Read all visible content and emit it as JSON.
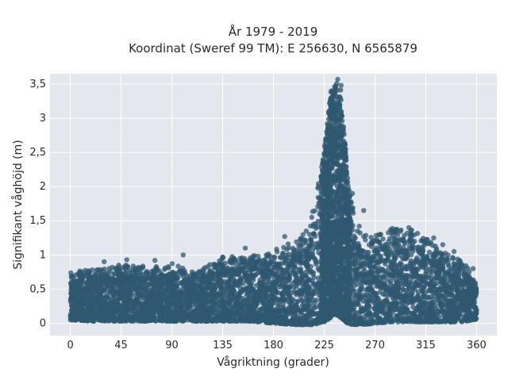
{
  "chart_data": {
    "type": "scatter",
    "title": [
      "År 1979 - 2019",
      "Koordinat (Sweref 99 TM): E 256630, N 6565879"
    ],
    "xlabel": "Vågriktning (grader)",
    "ylabel": "Signifikant våghöjd (m)",
    "xlim": [
      -18,
      378
    ],
    "ylim": [
      -0.18,
      3.65
    ],
    "x_ticks": [
      0,
      45,
      90,
      135,
      180,
      225,
      270,
      315,
      360
    ],
    "x_tick_labels": [
      "0",
      "45",
      "90",
      "135",
      "180",
      "225",
      "270",
      "315",
      "360"
    ],
    "y_ticks": [
      0,
      0.5,
      1,
      1.5,
      2,
      2.5,
      3,
      3.5
    ],
    "y_tick_labels": [
      "0",
      "0,5",
      "1",
      "1,5",
      "2",
      "2,5",
      "3",
      "3,5"
    ],
    "grid": true,
    "legend": "none",
    "marker_color": "#2f5870",
    "plot_background": "#e5e7ef",
    "envelope": {
      "description_x": "wave direction (degrees)",
      "x": [
        0,
        20,
        45,
        70,
        90,
        110,
        135,
        160,
        180,
        200,
        210,
        215,
        220,
        225,
        228,
        230,
        232,
        234,
        236,
        238,
        240,
        242,
        244,
        246,
        250,
        255,
        260,
        270,
        285,
        300,
        315,
        330,
        345,
        360
      ],
      "y_max": [
        0.72,
        0.78,
        0.85,
        0.8,
        0.85,
        0.72,
        0.95,
        0.95,
        1.05,
        1.2,
        1.35,
        1.6,
        2.1,
        2.6,
        3.0,
        3.25,
        3.45,
        3.5,
        3.57,
        3.45,
        3.3,
        3.0,
        2.5,
        2.1,
        1.7,
        1.4,
        1.25,
        1.3,
        1.4,
        1.35,
        1.25,
        1.05,
        0.95,
        0.6
      ],
      "y_min": [
        0.05,
        0.03,
        0.03,
        0.03,
        0.03,
        0.03,
        0.03,
        0.03,
        0.0,
        -0.02,
        -0.02,
        -0.02,
        0.0,
        0.02,
        0.05,
        0.08,
        0.1,
        0.12,
        0.12,
        0.1,
        0.08,
        0.05,
        0.02,
        0.0,
        -0.02,
        -0.02,
        -0.02,
        0.0,
        0.02,
        0.02,
        0.02,
        0.02,
        0.02,
        0.05
      ]
    },
    "outliers": [
      {
        "x": 237,
        "y": 3.57
      },
      {
        "x": 240,
        "y": 3.48
      },
      {
        "x": 235,
        "y": 3.47
      },
      {
        "x": 244,
        "y": 2.55
      },
      {
        "x": 250,
        "y": 1.9
      },
      {
        "x": 260,
        "y": 1.65
      },
      {
        "x": 248,
        "y": 1.5
      },
      {
        "x": 256,
        "y": 1.42
      },
      {
        "x": 300,
        "y": 1.4
      },
      {
        "x": 322,
        "y": 1.25
      },
      {
        "x": 290,
        "y": 1.3
      },
      {
        "x": 275,
        "y": 1.3
      },
      {
        "x": 190,
        "y": 1.27
      },
      {
        "x": 205,
        "y": 1.23
      },
      {
        "x": 214,
        "y": 1.55
      },
      {
        "x": 220,
        "y": 2.0
      },
      {
        "x": 155,
        "y": 1.1
      },
      {
        "x": 135,
        "y": 0.97
      },
      {
        "x": 100,
        "y": 1.0
      },
      {
        "x": 50,
        "y": 0.93
      },
      {
        "x": 30,
        "y": 0.9
      },
      {
        "x": 75,
        "y": 0.92
      },
      {
        "x": 165,
        "y": 0.9
      },
      {
        "x": 345,
        "y": 0.92
      },
      {
        "x": 340,
        "y": 1.05
      },
      {
        "x": 330,
        "y": 1.15
      },
      {
        "x": 357,
        "y": 0.8
      },
      {
        "x": 305,
        "y": 1.2
      }
    ]
  }
}
